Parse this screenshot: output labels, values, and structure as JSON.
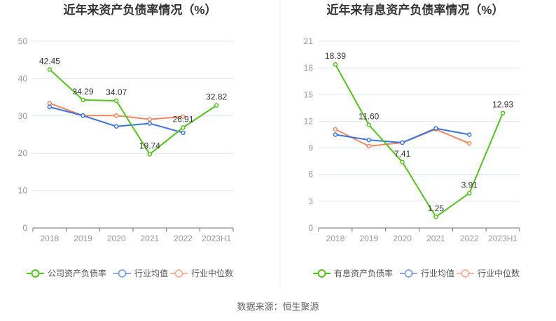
{
  "source": "数据来源：恒生聚源",
  "colors": {
    "company": "#52c41a",
    "avg": "#3b73e0",
    "median": "#f5855b"
  },
  "chart_data": [
    {
      "type": "line",
      "title": "近年来资产负债率情况（%）",
      "categories": [
        "2018",
        "2019",
        "2020",
        "2021",
        "2022",
        "2023H1"
      ],
      "ylim": [
        0,
        50
      ],
      "yticks": [
        0,
        10,
        20,
        30,
        40,
        50
      ],
      "legend_position": "bottom",
      "series": [
        {
          "name": "公司资产负债率",
          "key": "company",
          "values": [
            42.45,
            34.29,
            34.07,
            19.74,
            26.91,
            32.82
          ],
          "labels": [
            "42.45",
            "34.29",
            "34.07",
            "19.74",
            "26.91",
            "32.82"
          ]
        },
        {
          "name": "行业均值",
          "key": "avg",
          "values": [
            32.4,
            30.1,
            27.2,
            28.0,
            25.5,
            null
          ]
        },
        {
          "name": "行业中位数",
          "key": "median",
          "values": [
            33.4,
            30.1,
            30.1,
            29.1,
            29.8,
            null
          ]
        }
      ]
    },
    {
      "type": "line",
      "title": "近年来有息资产负债率情况（%）",
      "categories": [
        "2018",
        "2019",
        "2020",
        "2021",
        "2022",
        "2023H1"
      ],
      "ylim": [
        0,
        21
      ],
      "yticks": [
        0,
        3,
        6,
        9,
        12,
        15,
        18,
        21
      ],
      "legend_position": "bottom",
      "series": [
        {
          "name": "有息资产负债率",
          "key": "company",
          "values": [
            18.39,
            11.6,
            7.41,
            1.25,
            3.91,
            12.93
          ],
          "labels": [
            "18.39",
            "11.60",
            "7.41",
            "1.25",
            "3.91",
            "12.93"
          ]
        },
        {
          "name": "行业均值",
          "key": "avg",
          "values": [
            10.5,
            9.9,
            9.6,
            11.2,
            10.5,
            null
          ]
        },
        {
          "name": "行业中位数",
          "key": "median",
          "values": [
            11.1,
            9.2,
            9.6,
            11.1,
            9.5,
            null
          ]
        }
      ]
    }
  ]
}
